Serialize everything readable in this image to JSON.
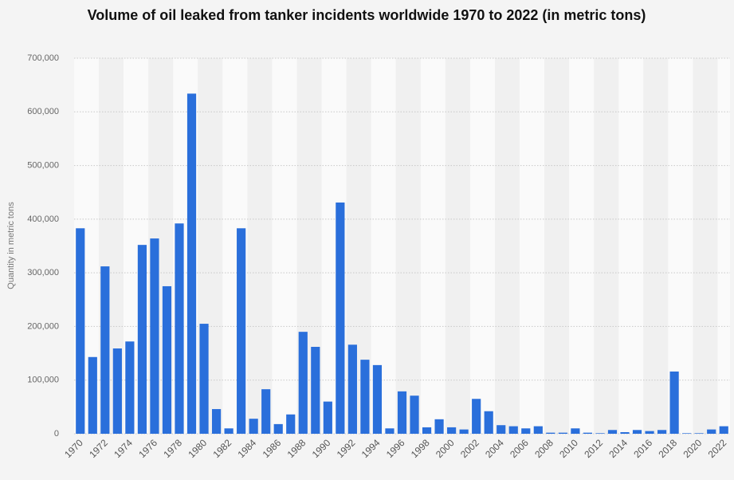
{
  "chart_data": {
    "type": "bar",
    "title": "Volume of oil leaked from tanker incidents worldwide 1970 to 2022 (in metric tons)",
    "y_label": "Quantity in metric tons",
    "categories": [
      "1970",
      null,
      "1972",
      null,
      "1974",
      null,
      "1976",
      null,
      "1978",
      null,
      "1980",
      null,
      "1982",
      null,
      "1984",
      null,
      "1986",
      null,
      "1988",
      null,
      "1990",
      null,
      "1992",
      null,
      "1994",
      null,
      "1996",
      null,
      "1998",
      null,
      "2000",
      null,
      "2002",
      null,
      "2004",
      null,
      "2006",
      null,
      "2008",
      null,
      "2010",
      null,
      "2012",
      null,
      "2014",
      null,
      "2016",
      null,
      "2018",
      null,
      "2020",
      null,
      "2022"
    ],
    "values": [
      383000,
      143000,
      312000,
      159000,
      172000,
      352000,
      364000,
      275000,
      392000,
      634000,
      205000,
      46000,
      10000,
      383000,
      28000,
      83000,
      18000,
      36000,
      190000,
      162000,
      60000,
      431000,
      166000,
      138000,
      128000,
      10000,
      79000,
      71000,
      12000,
      27000,
      12000,
      8000,
      65000,
      42000,
      16000,
      14000,
      10000,
      14000,
      2000,
      2000,
      10000,
      2000,
      1000,
      7000,
      3000,
      7000,
      5000,
      7000,
      116000,
      1000,
      1000,
      8000,
      14000
    ],
    "color": "#2a6fdb",
    "ylim": [
      0,
      700000
    ],
    "yticks": [
      0,
      {
        "value": 100000,
        "label": "100,000"
      },
      {
        "value": 200000,
        "label": "200,000"
      },
      {
        "value": 300000,
        "label": "300,000"
      },
      {
        "value": 400000,
        "label": "400,000"
      },
      {
        "value": 500000,
        "label": "500,000"
      },
      {
        "value": 600000,
        "label": "600,000"
      },
      {
        "value": 700000,
        "label": "700,000"
      }
    ],
    "grid": true
  }
}
